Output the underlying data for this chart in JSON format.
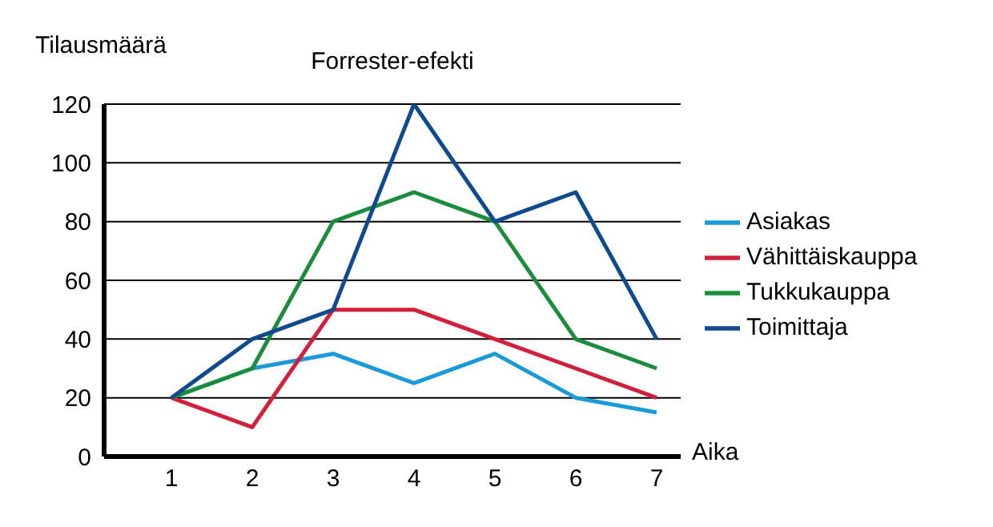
{
  "chart_data": {
    "type": "line",
    "title": "Forrester-efekti",
    "xlabel": "Aika",
    "ylabel": "Tilausmäärä",
    "categories": [
      "1",
      "2",
      "3",
      "4",
      "5",
      "6",
      "7"
    ],
    "series": [
      {
        "name": "Asiakas",
        "color": "#1a9ad6",
        "values": [
          20,
          30,
          35,
          25,
          35,
          20,
          15
        ]
      },
      {
        "name": "Vähittäiskauppa",
        "color": "#d0203a",
        "values": [
          20,
          10,
          50,
          50,
          40,
          30,
          20
        ]
      },
      {
        "name": "Tukkukauppa",
        "color": "#1a8c3c",
        "values": [
          20,
          30,
          80,
          90,
          80,
          40,
          30
        ]
      },
      {
        "name": "Toimittaja",
        "color": "#0e4a8c",
        "values": [
          20,
          40,
          50,
          120,
          80,
          90,
          40
        ]
      }
    ],
    "ylim": [
      0,
      120
    ],
    "yticks": [
      0,
      20,
      40,
      60,
      80,
      100,
      120
    ],
    "grid": "y",
    "legend": "right",
    "marker": "none",
    "line_style": "solid"
  }
}
